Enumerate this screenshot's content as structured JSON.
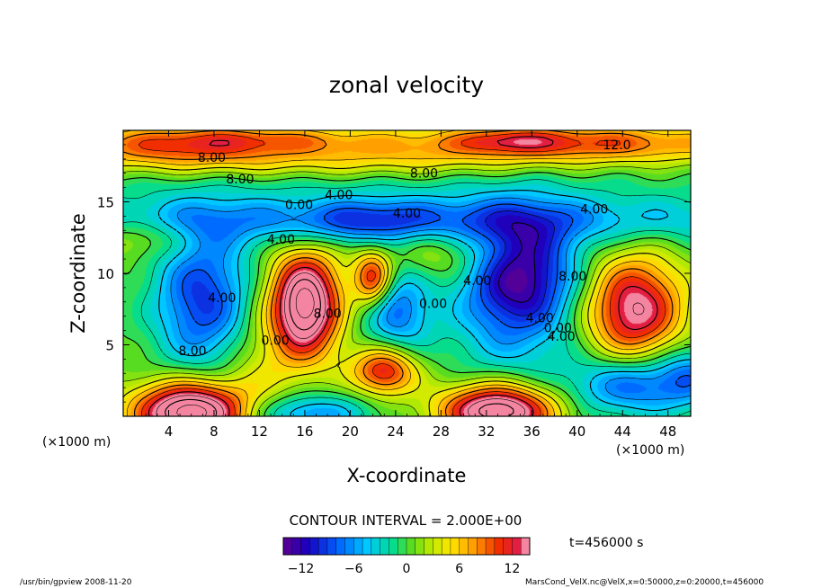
{
  "chart_data": {
    "type": "heatmap",
    "title": "zonal velocity",
    "xlabel": "X-coordinate",
    "ylabel": "Z-coordinate",
    "x_unit_left": "(×1000 m)",
    "x_unit_right": "(×1000 m)",
    "y_unit": "(×1000 m)",
    "xlim": [
      0,
      50
    ],
    "ylim": [
      0,
      20
    ],
    "x_ticks": [
      4,
      8,
      12,
      16,
      20,
      24,
      28,
      32,
      36,
      40,
      44,
      48
    ],
    "x_tick_labels": [
      "4",
      "8",
      "12",
      "16",
      "20",
      "24",
      "28",
      "32",
      "36",
      "40",
      "44",
      "48"
    ],
    "y_ticks": [
      5,
      10,
      15
    ],
    "y_tick_labels": [
      "5",
      "10",
      "15"
    ],
    "contour_interval_text": "CONTOUR INTERVAL = 2.000E+00",
    "time_text": "t=456000 s",
    "colorbar": {
      "vmin": -14,
      "vmax": 14,
      "ticks": [
        -12,
        -6,
        0,
        6,
        12
      ],
      "tick_labels": [
        "−12",
        "−6",
        "0",
        "6",
        "12"
      ]
    },
    "contour_labels": [
      {
        "text": "12.0",
        "x": 43.5,
        "y": 19.0
      },
      {
        "text": "8.00",
        "x": 7.8,
        "y": 18.1
      },
      {
        "text": "8.00",
        "x": 10.3,
        "y": 16.6
      },
      {
        "text": "8.00",
        "x": 26.5,
        "y": 17.0
      },
      {
        "text": "4.00",
        "x": 19.0,
        "y": 15.5
      },
      {
        "text": "0.00",
        "x": 15.5,
        "y": 14.8
      },
      {
        "text": "4.00",
        "x": 25.0,
        "y": 14.2
      },
      {
        "text": "4.00",
        "x": 41.5,
        "y": 14.5
      },
      {
        "text": "4.00",
        "x": 13.9,
        "y": 12.4
      },
      {
        "text": "4.00",
        "x": 31.2,
        "y": 9.5
      },
      {
        "text": "8.00",
        "x": 39.6,
        "y": 9.8
      },
      {
        "text": "4.00",
        "x": 8.7,
        "y": 8.3
      },
      {
        "text": "8.00",
        "x": 18.0,
        "y": 7.2
      },
      {
        "text": "0.00",
        "x": 27.3,
        "y": 7.9
      },
      {
        "text": "4.00",
        "x": 36.7,
        "y": 6.9
      },
      {
        "text": "0.00",
        "x": 38.3,
        "y": 6.2
      },
      {
        "text": "4.00",
        "x": 38.6,
        "y": 5.6
      },
      {
        "text": "0.00",
        "x": 13.4,
        "y": 5.3
      },
      {
        "text": "8.00",
        "x": 6.1,
        "y": 4.6
      }
    ],
    "features": [
      {
        "x": 25,
        "y": 19.0,
        "sx": 40,
        "sy": 1.0,
        "v": 5
      },
      {
        "x": 5,
        "y": 18.8,
        "sx": 6,
        "sy": 1.2,
        "v": 5
      },
      {
        "x": 40,
        "y": 19.2,
        "sx": 8,
        "sy": 0.9,
        "v": 5
      },
      {
        "x": 34,
        "y": 19.3,
        "sx": 3,
        "sy": 0.6,
        "v": 4
      },
      {
        "x": 12,
        "y": 19.4,
        "sx": 6,
        "sy": 0.6,
        "v": 3
      },
      {
        "x": 20,
        "y": 17.5,
        "sx": 12,
        "sy": 0.9,
        "v": 3
      },
      {
        "x": 20,
        "y": 16.5,
        "sx": 20,
        "sy": 0.8,
        "v": -2
      },
      {
        "x": 25,
        "y": 13.8,
        "sx": 25,
        "sy": 1.3,
        "v": -7
      },
      {
        "x": 22,
        "y": 13.6,
        "sx": 5,
        "sy": 1.0,
        "v": -4
      },
      {
        "x": 7,
        "y": 8.2,
        "sx": 3.0,
        "sy": 3.5,
        "v": -10
      },
      {
        "x": 16,
        "y": 7.8,
        "sx": 2.2,
        "sy": 2.6,
        "v": 19
      },
      {
        "x": 22,
        "y": 9.6,
        "sx": 1.2,
        "sy": 1.4,
        "v": 12
      },
      {
        "x": 23,
        "y": 3.2,
        "sx": 2.0,
        "sy": 1.2,
        "v": 12
      },
      {
        "x": 24,
        "y": 7.5,
        "sx": 2.2,
        "sy": 2.2,
        "v": -8
      },
      {
        "x": 35,
        "y": 10.2,
        "sx": 3.5,
        "sy": 2.8,
        "v": -13
      },
      {
        "x": 34,
        "y": 6,
        "sx": 4,
        "sy": 3,
        "v": -4
      },
      {
        "x": 45,
        "y": 7.5,
        "sx": 3.0,
        "sy": 2.6,
        "v": 14
      },
      {
        "x": 45,
        "y": 2.2,
        "sx": 4,
        "sy": 1.5,
        "v": -9
      },
      {
        "x": 50,
        "y": 3,
        "sx": 2,
        "sy": 1.5,
        "v": -5
      },
      {
        "x": 6,
        "y": 0.3,
        "sx": 3.5,
        "sy": 1.5,
        "v": 20
      },
      {
        "x": 33,
        "y": 0.4,
        "sx": 3.5,
        "sy": 1.3,
        "v": 18
      },
      {
        "x": 16,
        "y": 0.2,
        "sx": 4,
        "sy": 1.0,
        "v": -7
      },
      {
        "x": 12,
        "y": 3.5,
        "sx": 2.5,
        "sy": 2.5,
        "v": 3
      },
      {
        "x": 29,
        "y": 11.5,
        "sx": 4,
        "sy": 1.5,
        "v": 4
      },
      {
        "x": 2,
        "y": 12.5,
        "sx": 3,
        "sy": 1,
        "v": 4
      }
    ],
    "background_value": 0.5
  },
  "footer": {
    "left": "/usr/bin/gpview   2008-11-20",
    "right": "MarsCond_VelX.nc@VelX,x=0:50000,z=0:20000,t=456000"
  }
}
